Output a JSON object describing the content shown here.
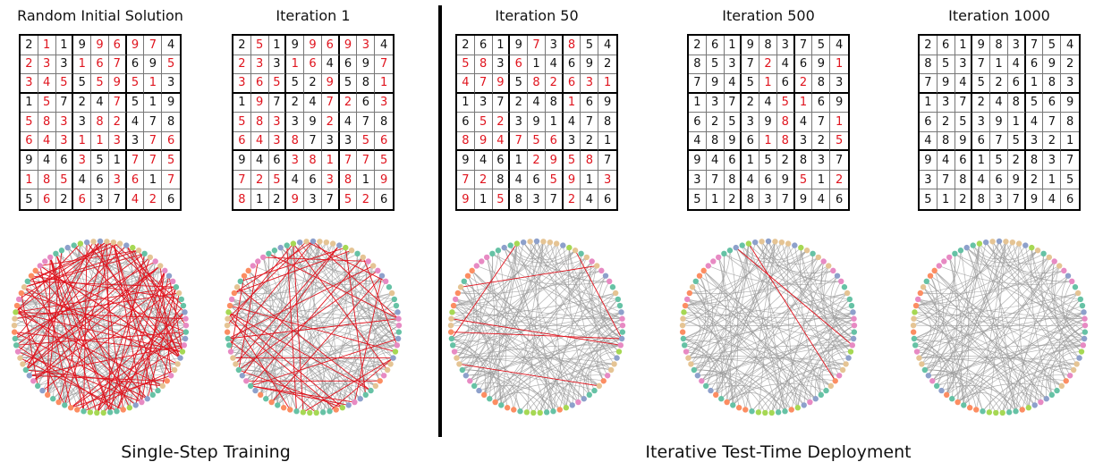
{
  "panels": [
    {
      "title": "Random Initial Solution",
      "grid": [
        [
          2,
          1,
          1,
          9,
          9,
          6,
          9,
          7,
          4
        ],
        [
          2,
          3,
          3,
          1,
          6,
          7,
          6,
          9,
          5
        ],
        [
          3,
          4,
          5,
          5,
          5,
          9,
          5,
          1,
          3
        ],
        [
          1,
          5,
          7,
          2,
          4,
          7,
          5,
          1,
          9
        ],
        [
          5,
          8,
          3,
          3,
          8,
          2,
          4,
          7,
          8
        ],
        [
          6,
          4,
          3,
          1,
          1,
          3,
          3,
          7,
          6
        ],
        [
          9,
          4,
          6,
          3,
          5,
          1,
          7,
          7,
          5
        ],
        [
          1,
          8,
          5,
          4,
          6,
          3,
          6,
          1,
          7
        ],
        [
          5,
          6,
          2,
          6,
          3,
          7,
          4,
          2,
          6
        ]
      ],
      "errors": [
        [
          0,
          1,
          0,
          0,
          1,
          1,
          1,
          1,
          0
        ],
        [
          1,
          1,
          0,
          1,
          1,
          1,
          0,
          0,
          1
        ],
        [
          1,
          1,
          1,
          0,
          1,
          1,
          1,
          1,
          0
        ],
        [
          0,
          1,
          0,
          0,
          0,
          1,
          0,
          0,
          0
        ],
        [
          1,
          1,
          1,
          0,
          1,
          1,
          0,
          0,
          0
        ],
        [
          1,
          1,
          1,
          1,
          1,
          1,
          0,
          1,
          1
        ],
        [
          0,
          0,
          0,
          1,
          0,
          0,
          1,
          1,
          1
        ],
        [
          1,
          1,
          1,
          0,
          0,
          1,
          1,
          0,
          1
        ],
        [
          0,
          1,
          0,
          1,
          0,
          0,
          1,
          1,
          0
        ]
      ],
      "conflicts": 90
    },
    {
      "title": "Iteration 1",
      "grid": [
        [
          2,
          5,
          1,
          9,
          9,
          6,
          9,
          3,
          4
        ],
        [
          2,
          3,
          3,
          1,
          6,
          4,
          6,
          9,
          7
        ],
        [
          3,
          6,
          5,
          5,
          2,
          9,
          5,
          8,
          1
        ],
        [
          1,
          9,
          7,
          2,
          4,
          7,
          2,
          6,
          3
        ],
        [
          5,
          8,
          3,
          3,
          9,
          2,
          4,
          7,
          8
        ],
        [
          6,
          4,
          3,
          8,
          7,
          3,
          3,
          5,
          6
        ],
        [
          9,
          4,
          6,
          3,
          8,
          1,
          7,
          7,
          5
        ],
        [
          7,
          2,
          5,
          4,
          6,
          3,
          8,
          1,
          9
        ],
        [
          8,
          1,
          2,
          9,
          3,
          7,
          5,
          2,
          6
        ]
      ],
      "errors": [
        [
          0,
          1,
          0,
          0,
          1,
          1,
          1,
          1,
          0
        ],
        [
          1,
          1,
          0,
          1,
          1,
          0,
          0,
          0,
          1
        ],
        [
          1,
          1,
          1,
          0,
          0,
          1,
          0,
          0,
          1
        ],
        [
          0,
          1,
          0,
          0,
          0,
          1,
          1,
          0,
          1
        ],
        [
          1,
          1,
          1,
          0,
          0,
          1,
          0,
          0,
          0
        ],
        [
          1,
          1,
          1,
          1,
          0,
          0,
          0,
          1,
          1
        ],
        [
          0,
          0,
          0,
          1,
          1,
          1,
          1,
          1,
          1
        ],
        [
          1,
          1,
          1,
          0,
          0,
          1,
          1,
          0,
          1
        ],
        [
          1,
          0,
          0,
          1,
          0,
          0,
          1,
          1,
          0
        ]
      ],
      "conflicts": 40
    },
    {
      "title": "Iteration 50",
      "grid": [
        [
          2,
          6,
          1,
          9,
          7,
          3,
          8,
          5,
          4
        ],
        [
          5,
          8,
          3,
          6,
          1,
          4,
          6,
          9,
          2
        ],
        [
          4,
          7,
          9,
          5,
          8,
          2,
          6,
          3,
          1
        ],
        [
          1,
          3,
          7,
          2,
          4,
          8,
          1,
          6,
          9
        ],
        [
          6,
          5,
          2,
          3,
          9,
          1,
          4,
          7,
          8
        ],
        [
          8,
          9,
          4,
          7,
          5,
          6,
          3,
          2,
          1
        ],
        [
          9,
          4,
          6,
          1,
          2,
          9,
          5,
          8,
          7
        ],
        [
          7,
          2,
          8,
          4,
          6,
          5,
          9,
          1,
          3
        ],
        [
          9,
          1,
          5,
          8,
          3,
          7,
          2,
          4,
          6
        ]
      ],
      "errors": [
        [
          0,
          0,
          0,
          0,
          1,
          0,
          1,
          0,
          0
        ],
        [
          1,
          1,
          0,
          1,
          0,
          0,
          0,
          0,
          0
        ],
        [
          1,
          1,
          1,
          0,
          1,
          1,
          1,
          1,
          1
        ],
        [
          0,
          0,
          0,
          0,
          0,
          0,
          1,
          0,
          0
        ],
        [
          0,
          1,
          1,
          0,
          0,
          0,
          0,
          0,
          0
        ],
        [
          1,
          1,
          1,
          1,
          1,
          1,
          0,
          0,
          0
        ],
        [
          0,
          0,
          0,
          0,
          1,
          1,
          1,
          1,
          0
        ],
        [
          1,
          1,
          0,
          0,
          0,
          1,
          1,
          0,
          1
        ],
        [
          1,
          0,
          1,
          0,
          0,
          0,
          1,
          0,
          0
        ]
      ],
      "conflicts": 6
    },
    {
      "title": "Iteration 500",
      "grid": [
        [
          2,
          6,
          1,
          9,
          8,
          3,
          7,
          5,
          4
        ],
        [
          8,
          5,
          3,
          7,
          2,
          4,
          6,
          9,
          1
        ],
        [
          7,
          9,
          4,
          5,
          1,
          6,
          2,
          8,
          3
        ],
        [
          1,
          3,
          7,
          2,
          4,
          5,
          1,
          6,
          9
        ],
        [
          6,
          2,
          5,
          3,
          9,
          8,
          4,
          7,
          1
        ],
        [
          4,
          8,
          9,
          6,
          1,
          8,
          3,
          2,
          5
        ],
        [
          9,
          4,
          6,
          1,
          5,
          2,
          8,
          3,
          7
        ],
        [
          3,
          7,
          8,
          4,
          6,
          9,
          5,
          1,
          2
        ],
        [
          5,
          1,
          2,
          8,
          3,
          7,
          9,
          4,
          6
        ]
      ],
      "errors": [
        [
          0,
          0,
          0,
          0,
          0,
          0,
          0,
          0,
          0
        ],
        [
          0,
          0,
          0,
          0,
          1,
          0,
          0,
          0,
          1
        ],
        [
          0,
          0,
          0,
          0,
          1,
          0,
          1,
          0,
          0
        ],
        [
          0,
          0,
          0,
          0,
          0,
          1,
          1,
          0,
          0
        ],
        [
          0,
          0,
          0,
          0,
          0,
          1,
          0,
          0,
          1
        ],
        [
          0,
          0,
          0,
          0,
          1,
          1,
          0,
          0,
          1
        ],
        [
          0,
          0,
          0,
          0,
          0,
          0,
          0,
          0,
          0
        ],
        [
          0,
          0,
          0,
          0,
          0,
          0,
          1,
          0,
          1
        ],
        [
          0,
          0,
          0,
          0,
          0,
          0,
          0,
          0,
          0
        ]
      ],
      "conflicts": 2
    },
    {
      "title": "Iteration 1000",
      "grid": [
        [
          2,
          6,
          1,
          9,
          8,
          3,
          7,
          5,
          4
        ],
        [
          8,
          5,
          3,
          7,
          1,
          4,
          6,
          9,
          2
        ],
        [
          7,
          9,
          4,
          5,
          2,
          6,
          1,
          8,
          3
        ],
        [
          1,
          3,
          7,
          2,
          4,
          8,
          5,
          6,
          9
        ],
        [
          6,
          2,
          5,
          3,
          9,
          1,
          4,
          7,
          8
        ],
        [
          4,
          8,
          9,
          6,
          7,
          5,
          3,
          2,
          1
        ],
        [
          9,
          4,
          6,
          1,
          5,
          2,
          8,
          3,
          7
        ],
        [
          3,
          7,
          8,
          4,
          6,
          9,
          2,
          1,
          5
        ],
        [
          5,
          1,
          2,
          8,
          3,
          7,
          9,
          4,
          6
        ]
      ],
      "errors": [
        [
          0,
          0,
          0,
          0,
          0,
          0,
          0,
          0,
          0
        ],
        [
          0,
          0,
          0,
          0,
          0,
          0,
          0,
          0,
          0
        ],
        [
          0,
          0,
          0,
          0,
          0,
          0,
          0,
          0,
          0
        ],
        [
          0,
          0,
          0,
          0,
          0,
          0,
          0,
          0,
          0
        ],
        [
          0,
          0,
          0,
          0,
          0,
          0,
          0,
          0,
          0
        ],
        [
          0,
          0,
          0,
          0,
          0,
          0,
          0,
          0,
          0
        ],
        [
          0,
          0,
          0,
          0,
          0,
          0,
          0,
          0,
          0
        ],
        [
          0,
          0,
          0,
          0,
          0,
          0,
          0,
          0,
          0
        ],
        [
          0,
          0,
          0,
          0,
          0,
          0,
          0,
          0,
          0
        ]
      ],
      "conflicts": 0
    }
  ],
  "sections": {
    "left": "Single-Step Training",
    "right": "Iterative Test-Time Deployment"
  },
  "colors": {
    "error_digit": "#e0141e",
    "conflict_edge": "#e0141e",
    "satisfied_edge": "#9a9a9a",
    "node_palette": [
      "#66c2a5",
      "#fc8d62",
      "#e78ac3",
      "#a6d854",
      "#e5c494",
      "#8da0cb"
    ]
  }
}
